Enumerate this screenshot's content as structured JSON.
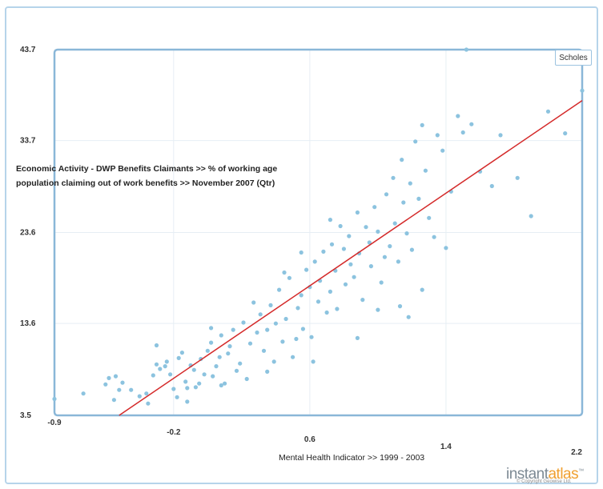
{
  "chart_data": {
    "type": "scatter",
    "ylabel": "Economic Activity - DWP Benefits Claimants >> % of working age population claiming out of work benefits >>  November 2007 (Qtr)",
    "ylabel_lines": [
      "Economic Activity - DWP Benefits Claimants >> % of working age",
      "population claiming out of work benefits >>  November 2007 (Qtr)"
    ],
    "xlabel": "Mental Health Indicator >>  1999 - 2003",
    "xlim": [
      -0.9,
      2.2
    ],
    "ylim": [
      3.5,
      43.7
    ],
    "x_ticks": [
      -0.9,
      -0.2,
      0.6,
      1.4,
      2.2
    ],
    "x_tick_labels": [
      "-0.9",
      "-0.2",
      "0.6",
      "1.4",
      "2.2"
    ],
    "y_ticks": [
      3.5,
      13.6,
      23.6,
      33.7,
      43.7
    ],
    "y_tick_labels": [
      "3.5",
      "13.6",
      "23.6",
      "33.7",
      "43.7"
    ],
    "grid": true,
    "highlighted_series": "Scholes",
    "point_color": "#8cc3df",
    "trendline": {
      "x": [
        -0.52,
        2.2
      ],
      "y": [
        3.5,
        38.1
      ],
      "color": "#d42a2a"
    },
    "points": [
      [
        -0.9,
        5.3
      ],
      [
        -0.73,
        5.9
      ],
      [
        -0.6,
        6.9
      ],
      [
        -0.58,
        7.6
      ],
      [
        -0.55,
        5.2
      ],
      [
        -0.54,
        7.8
      ],
      [
        -0.52,
        6.3
      ],
      [
        -0.5,
        7.1
      ],
      [
        -0.45,
        6.3
      ],
      [
        -0.4,
        5.6
      ],
      [
        -0.36,
        5.9
      ],
      [
        -0.35,
        4.8
      ],
      [
        -0.32,
        7.9
      ],
      [
        -0.3,
        9.1
      ],
      [
        -0.28,
        8.6
      ],
      [
        -0.25,
        8.9
      ],
      [
        -0.24,
        9.4
      ],
      [
        -0.22,
        8.0
      ],
      [
        -0.2,
        6.4
      ],
      [
        -0.18,
        5.5
      ],
      [
        -0.17,
        9.8
      ],
      [
        -0.15,
        10.4
      ],
      [
        -0.13,
        7.2
      ],
      [
        -0.12,
        6.5
      ],
      [
        -0.1,
        9.0
      ],
      [
        -0.08,
        8.5
      ],
      [
        -0.07,
        6.6
      ],
      [
        -0.05,
        7.0
      ],
      [
        -0.04,
        9.7
      ],
      [
        -0.02,
        8.0
      ],
      [
        0.0,
        10.6
      ],
      [
        0.02,
        11.5
      ],
      [
        0.03,
        7.8
      ],
      [
        0.05,
        8.9
      ],
      [
        0.07,
        9.9
      ],
      [
        0.08,
        12.3
      ],
      [
        0.1,
        7.0
      ],
      [
        0.12,
        10.3
      ],
      [
        0.13,
        11.1
      ],
      [
        0.15,
        12.9
      ],
      [
        0.17,
        8.4
      ],
      [
        0.19,
        9.2
      ],
      [
        0.21,
        13.7
      ],
      [
        0.23,
        7.5
      ],
      [
        0.25,
        11.4
      ],
      [
        0.27,
        15.9
      ],
      [
        0.29,
        12.6
      ],
      [
        0.31,
        14.6
      ],
      [
        0.33,
        10.6
      ],
      [
        0.35,
        12.9
      ],
      [
        0.37,
        15.6
      ],
      [
        0.39,
        9.4
      ],
      [
        0.4,
        13.6
      ],
      [
        0.42,
        17.3
      ],
      [
        0.44,
        11.6
      ],
      [
        0.46,
        14.1
      ],
      [
        0.48,
        18.6
      ],
      [
        0.5,
        9.9
      ],
      [
        0.52,
        11.9
      ],
      [
        0.53,
        15.3
      ],
      [
        0.55,
        16.7
      ],
      [
        0.56,
        13.0
      ],
      [
        0.58,
        19.5
      ],
      [
        0.6,
        17.6
      ],
      [
        0.61,
        12.1
      ],
      [
        0.63,
        20.4
      ],
      [
        0.65,
        16.0
      ],
      [
        0.66,
        18.3
      ],
      [
        0.68,
        21.5
      ],
      [
        0.7,
        14.8
      ],
      [
        0.72,
        17.1
      ],
      [
        0.73,
        22.3
      ],
      [
        0.75,
        19.4
      ],
      [
        0.76,
        15.2
      ],
      [
        0.78,
        24.3
      ],
      [
        0.8,
        21.8
      ],
      [
        0.81,
        17.9
      ],
      [
        0.83,
        23.2
      ],
      [
        0.84,
        20.1
      ],
      [
        0.86,
        18.7
      ],
      [
        0.88,
        25.8
      ],
      [
        0.89,
        21.3
      ],
      [
        0.91,
        16.2
      ],
      [
        0.93,
        24.2
      ],
      [
        0.95,
        22.5
      ],
      [
        0.96,
        19.9
      ],
      [
        0.98,
        26.4
      ],
      [
        1.0,
        23.7
      ],
      [
        1.02,
        18.1
      ],
      [
        1.04,
        20.9
      ],
      [
        1.05,
        27.8
      ],
      [
        1.07,
        22.1
      ],
      [
        1.09,
        29.6
      ],
      [
        1.1,
        24.6
      ],
      [
        1.12,
        20.4
      ],
      [
        1.14,
        31.6
      ],
      [
        1.15,
        26.9
      ],
      [
        1.17,
        23.5
      ],
      [
        1.19,
        29.0
      ],
      [
        1.2,
        21.7
      ],
      [
        1.22,
        33.6
      ],
      [
        1.24,
        27.3
      ],
      [
        1.26,
        35.4
      ],
      [
        1.28,
        30.4
      ],
      [
        1.3,
        25.2
      ],
      [
        1.33,
        23.1
      ],
      [
        1.35,
        34.3
      ],
      [
        1.38,
        32.6
      ],
      [
        1.4,
        21.9
      ],
      [
        1.43,
        28.1
      ],
      [
        1.47,
        36.4
      ],
      [
        1.5,
        34.6
      ],
      [
        1.52,
        43.7
      ],
      [
        1.55,
        35.5
      ],
      [
        1.6,
        30.3
      ],
      [
        1.67,
        28.7
      ],
      [
        1.72,
        34.3
      ],
      [
        1.82,
        29.6
      ],
      [
        1.9,
        25.4
      ],
      [
        2.0,
        36.9
      ],
      [
        2.1,
        34.5
      ],
      [
        2.2,
        39.2
      ],
      [
        -0.12,
        5.0
      ],
      [
        0.08,
        6.8
      ],
      [
        0.35,
        8.3
      ],
      [
        0.62,
        9.4
      ],
      [
        0.88,
        12.0
      ],
      [
        1.13,
        15.5
      ],
      [
        1.26,
        17.3
      ],
      [
        0.02,
        13.1
      ],
      [
        -0.3,
        11.2
      ],
      [
        0.45,
        19.2
      ],
      [
        0.72,
        25.0
      ],
      [
        1.0,
        15.1
      ],
      [
        1.18,
        14.3
      ],
      [
        0.55,
        21.4
      ]
    ]
  },
  "legend": {
    "selected_label": "Scholes"
  },
  "branding": {
    "logo_text": "instant",
    "logo_accent": "atlas",
    "logo_mark": "™",
    "copyright": "© Copyright Geowise Ltd."
  }
}
